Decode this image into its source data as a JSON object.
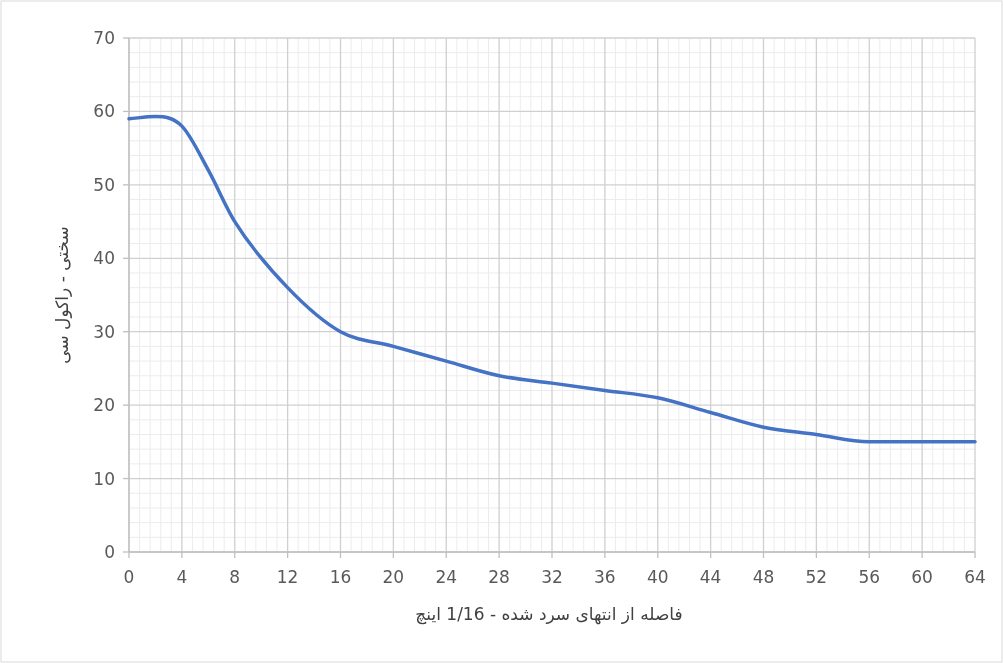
{
  "chart_data": {
    "type": "line",
    "xlabel": "فاصله از انتهای سرد شده - 1/16 اینچ",
    "ylabel": "سختی - راکول سی",
    "x": [
      0,
      2,
      4,
      6,
      8,
      12,
      16,
      20,
      24,
      28,
      32,
      36,
      40,
      44,
      48,
      52,
      56,
      60,
      64
    ],
    "series": [
      {
        "color": "#4472c4",
        "values": [
          59,
          59.3,
          58,
          52,
          45,
          36,
          30,
          28,
          26,
          24,
          23,
          22,
          21,
          19,
          17,
          16,
          15,
          15,
          15
        ]
      }
    ],
    "xlim": [
      0,
      64
    ],
    "xticks": [
      0,
      4,
      8,
      12,
      16,
      20,
      24,
      28,
      32,
      36,
      40,
      44,
      48,
      52,
      56,
      60,
      64
    ],
    "ylim": [
      0,
      70
    ],
    "yticks": [
      0,
      10,
      20,
      30,
      40,
      50,
      60,
      70
    ],
    "grid": true,
    "marker": "none",
    "line_style": "solid"
  }
}
